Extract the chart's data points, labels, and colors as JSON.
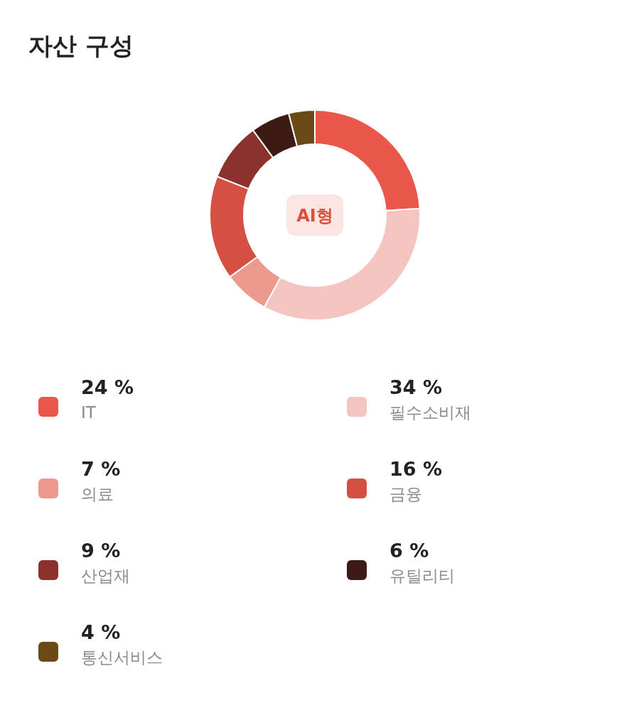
{
  "chart_data": {
    "type": "donut",
    "title": "자산 구성",
    "categories": [
      "IT",
      "필수소비재",
      "의료",
      "금융",
      "산업재",
      "유틸리티",
      "통신서비스"
    ],
    "values": [
      24,
      34,
      7,
      16,
      9,
      6,
      4
    ],
    "value_labels": [
      "24 %",
      "34 %",
      "7 %",
      "16 %",
      "9 %",
      "6 %",
      "4 %"
    ],
    "colors": [
      "#e8574a",
      "#f4c4c0",
      "#ec9a8e",
      "#d35042",
      "#8c322c",
      "#3e1a14",
      "#6b4a17"
    ],
    "annotations": [
      "AI형"
    ],
    "legend": "bottom"
  }
}
